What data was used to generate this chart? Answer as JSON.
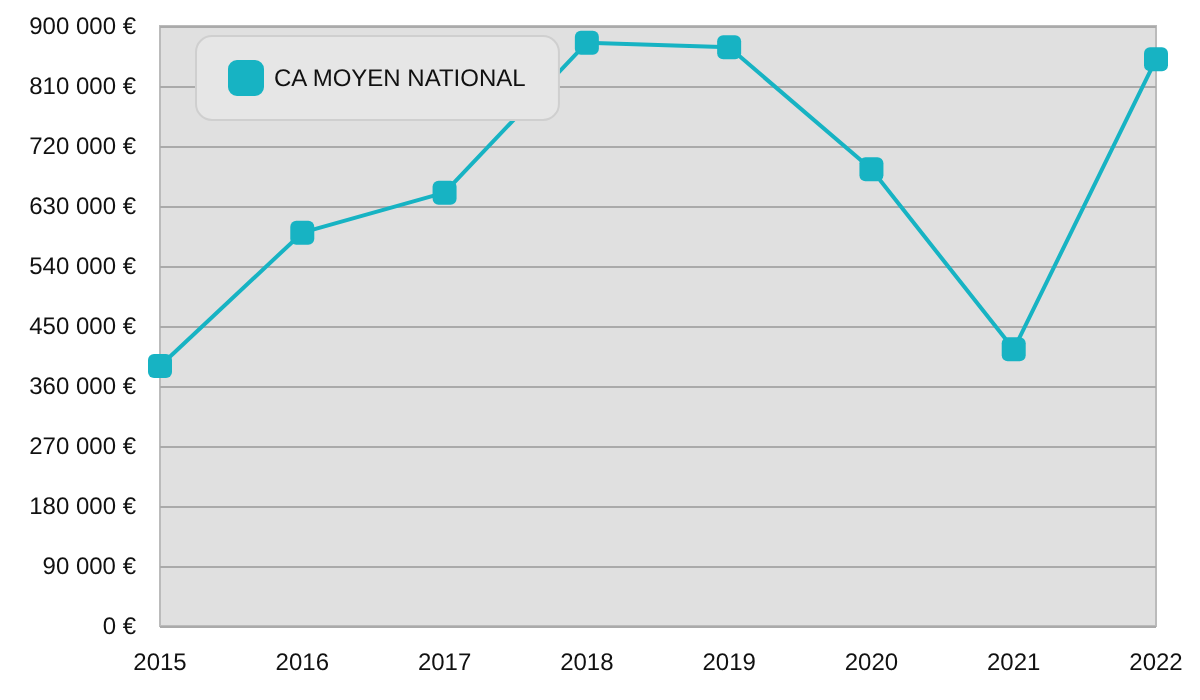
{
  "chart_data": {
    "type": "line",
    "categories": [
      "2015",
      "2016",
      "2017",
      "2018",
      "2019",
      "2020",
      "2021",
      "2022"
    ],
    "series": [
      {
        "name": "CA MOYEN NATIONAL",
        "color": "#17b3c3",
        "values": [
          390000,
          590000,
          650000,
          875000,
          868000,
          685000,
          415000,
          850000
        ]
      }
    ],
    "ylim": [
      0,
      900000
    ],
    "yticks": [
      {
        "value": 0,
        "label": "0 €"
      },
      {
        "value": 90000,
        "label": "90 000 €"
      },
      {
        "value": 180000,
        "label": "180 000 €"
      },
      {
        "value": 270000,
        "label": "270 000 €"
      },
      {
        "value": 360000,
        "label": "360 000 €"
      },
      {
        "value": 450000,
        "label": "450 000 €"
      },
      {
        "value": 540000,
        "label": "540 000 €"
      },
      {
        "value": 630000,
        "label": "630 000 €"
      },
      {
        "value": 720000,
        "label": "720 000 €"
      },
      {
        "value": 810000,
        "label": "810 000 €"
      },
      {
        "value": 900000,
        "label": "900 000 €"
      }
    ],
    "grid": "y",
    "legend": "top left",
    "marker": "square",
    "line_style": "solid"
  }
}
